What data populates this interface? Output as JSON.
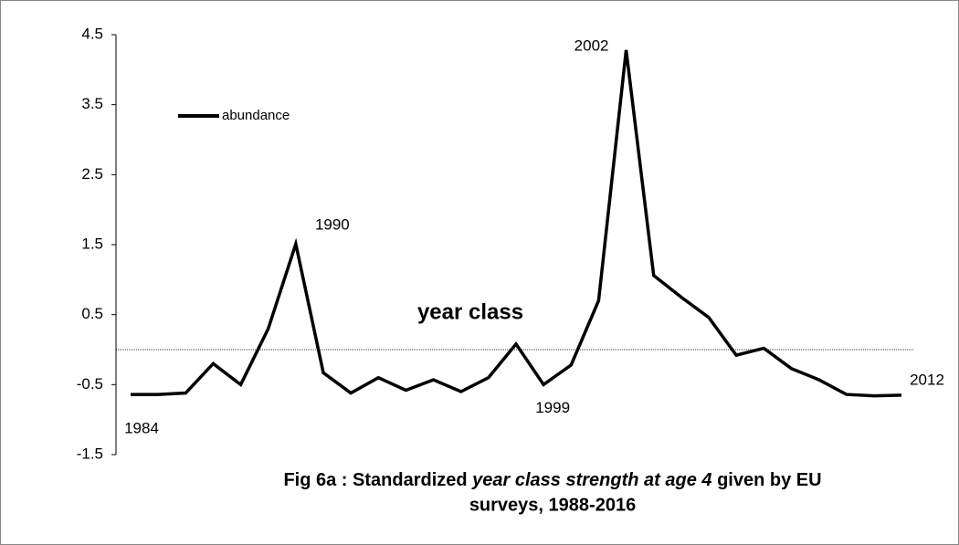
{
  "chart_data": {
    "type": "line",
    "xlabel": "year class",
    "caption": {
      "line1": [
        "Fig 6a : Standardized ",
        "year class strength at age 4",
        " given by EU"
      ],
      "line2": "surveys, 1988-2016"
    },
    "x": [
      1984,
      1985,
      1986,
      1987,
      1988,
      1989,
      1990,
      1991,
      1992,
      1993,
      1994,
      1995,
      1996,
      1997,
      1998,
      1999,
      2000,
      2001,
      2002,
      2003,
      2004,
      2005,
      2006,
      2007,
      2008,
      2009,
      2010,
      2011,
      2012
    ],
    "series": [
      {
        "name": "abundance",
        "color": "#000000",
        "values": [
          -0.64,
          -0.64,
          -0.62,
          -0.2,
          -0.5,
          0.3,
          1.51,
          -0.33,
          -0.62,
          -0.4,
          -0.58,
          -0.43,
          -0.6,
          -0.4,
          0.08,
          -0.5,
          -0.22,
          0.7,
          4.28,
          1.06,
          0.75,
          0.46,
          -0.08,
          0.02,
          -0.27,
          -0.43,
          -0.64,
          -0.66,
          -0.65
        ]
      }
    ],
    "xlim": [
      1984,
      2012
    ],
    "ylim": [
      -1.5,
      4.5
    ],
    "yticks": [
      -1.5,
      -0.5,
      0.5,
      1.5,
      2.5,
      3.5,
      4.5
    ],
    "reference_line": 0,
    "annotations": [
      {
        "text": "1984",
        "x": 1984
      },
      {
        "text": "1990",
        "x": 1990
      },
      {
        "text": "1999",
        "x": 1999
      },
      {
        "text": "2002",
        "x": 2002
      },
      {
        "text": "2012",
        "x": 2012
      }
    ],
    "legend": "upper left",
    "grid": false
  }
}
